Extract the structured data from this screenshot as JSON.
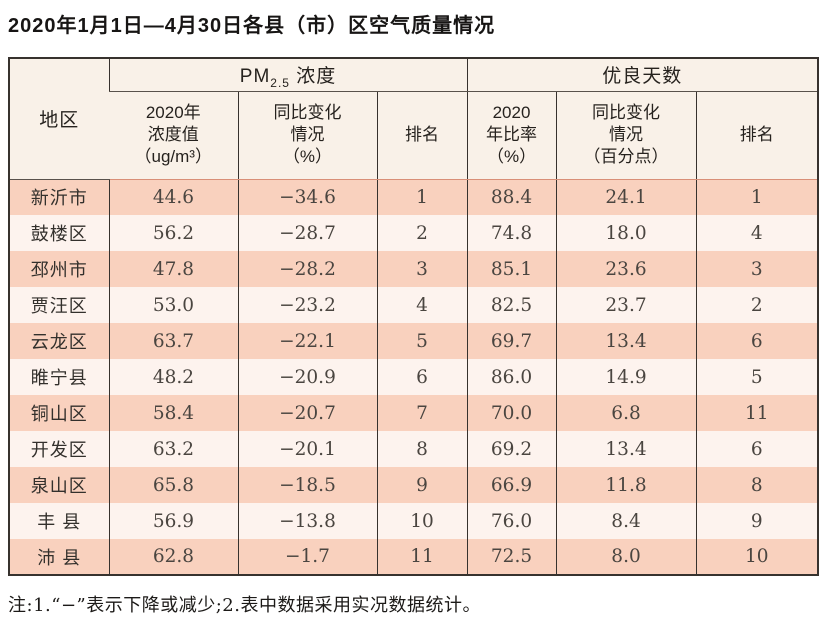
{
  "title": "2020年1月1日—4月30日各县（市）区空气质量情况",
  "table": {
    "corner_header": "地区",
    "groups": [
      {
        "prefix": "PM",
        "sub": "2.5",
        "suffix": " 浓度"
      },
      {
        "label": "优良天数"
      }
    ],
    "sub_headers": [
      "2020年\n浓度值\n（ug/m³）",
      "同比变化\n情况\n（%）",
      "排名",
      "2020\n年比率\n（%）",
      "同比变化\n情况\n（百分点）",
      "排名"
    ],
    "rows": [
      [
        "新沂市",
        "44.6",
        "−34.6",
        "1",
        "88.4",
        "24.1",
        "1"
      ],
      [
        "鼓楼区",
        "56.2",
        "−28.7",
        "2",
        "74.8",
        "18.0",
        "4"
      ],
      [
        "邳州市",
        "47.8",
        "−28.2",
        "3",
        "85.1",
        "23.6",
        "3"
      ],
      [
        "贾汪区",
        "53.0",
        "−23.2",
        "4",
        "82.5",
        "23.7",
        "2"
      ],
      [
        "云龙区",
        "63.7",
        "−22.1",
        "5",
        "69.7",
        "13.4",
        "6"
      ],
      [
        "睢宁县",
        "48.2",
        "−20.9",
        "6",
        "86.0",
        "14.9",
        "5"
      ],
      [
        "铜山区",
        "58.4",
        "−20.7",
        "7",
        "70.0",
        "6.8",
        "11"
      ],
      [
        "开发区",
        "63.2",
        "−20.1",
        "8",
        "69.2",
        "13.4",
        "6"
      ],
      [
        "泉山区",
        "65.8",
        "−18.5",
        "9",
        "66.9",
        "11.8",
        "8"
      ],
      [
        "丰 县",
        "56.9",
        "−13.8",
        "10",
        "76.0",
        "8.4",
        "9"
      ],
      [
        "沛 县",
        "62.8",
        "−1.7",
        "11",
        "72.5",
        "8.0",
        "10"
      ]
    ]
  },
  "note": "注:1.“−”表示下降或减少;2.表中数据采用实况数据统计。",
  "colors": {
    "row_salmon": "#f9d1be",
    "row_light": "#fdf3ee",
    "header_bg": "#f9f1e8",
    "border_dark": "#37322e",
    "divider_salmon": "#d98f77"
  },
  "chart_data": {
    "type": "table",
    "title": "2020年1月1日—4月30日各县（市）区空气质量情况",
    "columns": [
      "地区",
      "PM2.5浓度 2020年浓度值（ug/m³）",
      "PM2.5浓度 同比变化情况（%）",
      "PM2.5浓度 排名",
      "优良天数 2020年比率（%）",
      "优良天数 同比变化情况（百分点）",
      "优良天数 排名"
    ],
    "rows": [
      [
        "新沂市",
        44.6,
        -34.6,
        1,
        88.4,
        24.1,
        1
      ],
      [
        "鼓楼区",
        56.2,
        -28.7,
        2,
        74.8,
        18.0,
        4
      ],
      [
        "邳州市",
        47.8,
        -28.2,
        3,
        85.1,
        23.6,
        3
      ],
      [
        "贾汪区",
        53.0,
        -23.2,
        4,
        82.5,
        23.7,
        2
      ],
      [
        "云龙区",
        63.7,
        -22.1,
        5,
        69.7,
        13.4,
        6
      ],
      [
        "睢宁县",
        48.2,
        -20.9,
        6,
        86.0,
        14.9,
        5
      ],
      [
        "铜山区",
        58.4,
        -20.7,
        7,
        70.0,
        6.8,
        11
      ],
      [
        "开发区",
        63.2,
        -20.1,
        8,
        69.2,
        13.4,
        6
      ],
      [
        "泉山区",
        65.8,
        -18.5,
        9,
        66.9,
        11.8,
        8
      ],
      [
        "丰县",
        56.9,
        -13.8,
        10,
        76.0,
        8.4,
        9
      ],
      [
        "沛县",
        62.8,
        -1.7,
        11,
        72.5,
        8.0,
        10
      ]
    ],
    "note": "注:1.“−”表示下降或减少;2.表中数据采用实况数据统计。"
  }
}
